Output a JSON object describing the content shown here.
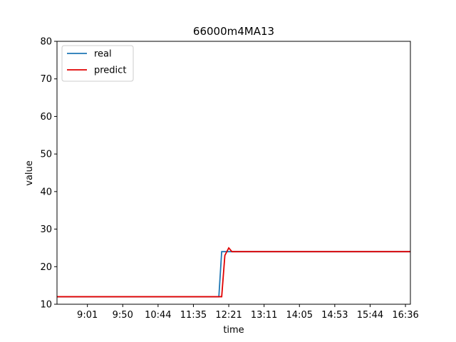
{
  "chart_data": {
    "type": "line",
    "title": "66000m4MA13",
    "xlabel": "time",
    "ylabel": "value",
    "ylim": [
      10,
      80
    ],
    "yticks": [
      10,
      20,
      30,
      40,
      50,
      60,
      70,
      80
    ],
    "xlim": [
      0,
      100
    ],
    "xticks": [
      {
        "label": "9:01",
        "x": 8.6
      },
      {
        "label": "9:50",
        "x": 18.6
      },
      {
        "label": "10:44",
        "x": 28.6
      },
      {
        "label": "11:35",
        "x": 38.6
      },
      {
        "label": "12:21",
        "x": 48.6
      },
      {
        "label": "13:11",
        "x": 58.6
      },
      {
        "label": "14:05",
        "x": 68.6
      },
      {
        "label": "14:53",
        "x": 78.6
      },
      {
        "label": "15:44",
        "x": 88.6
      },
      {
        "label": "16:36",
        "x": 98.6
      }
    ],
    "legend_position": "top-left",
    "grid": false,
    "series": [
      {
        "name": "real",
        "color": "#1f77b4",
        "points": [
          [
            0,
            12
          ],
          [
            45.8,
            12
          ],
          [
            46.6,
            24
          ],
          [
            100,
            24
          ]
        ]
      },
      {
        "name": "predict",
        "color": "#e00000",
        "points": [
          [
            0,
            12
          ],
          [
            46.6,
            12
          ],
          [
            47.5,
            23
          ],
          [
            48.6,
            25
          ],
          [
            49.5,
            24
          ],
          [
            100,
            24
          ]
        ]
      }
    ]
  }
}
